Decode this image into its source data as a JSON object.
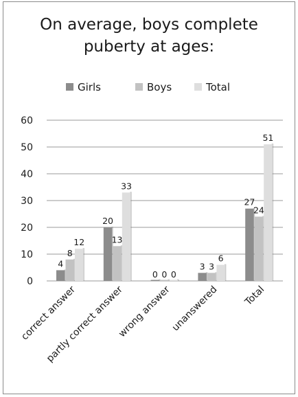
{
  "chart_data": {
    "type": "bar",
    "title_lines": [
      "On average, boys complete",
      "puberty at ages:"
    ],
    "categories": [
      "correct answer",
      "partly correct answer",
      "wrong answer",
      "unanswered",
      "Total"
    ],
    "series": [
      {
        "name": "Girls",
        "values": [
          4,
          20,
          0,
          3,
          27
        ],
        "color": "#8c8c8c"
      },
      {
        "name": "Boys",
        "values": [
          8,
          13,
          0,
          3,
          24
        ],
        "color": "#c2c2c2"
      },
      {
        "name": "Total",
        "values": [
          12,
          33,
          0,
          6,
          51
        ],
        "color": "#dedede"
      }
    ],
    "ylim": [
      0,
      60
    ],
    "yticks": [
      0,
      10,
      20,
      30,
      40,
      50,
      60
    ],
    "grid": true,
    "legend_position": "top"
  }
}
